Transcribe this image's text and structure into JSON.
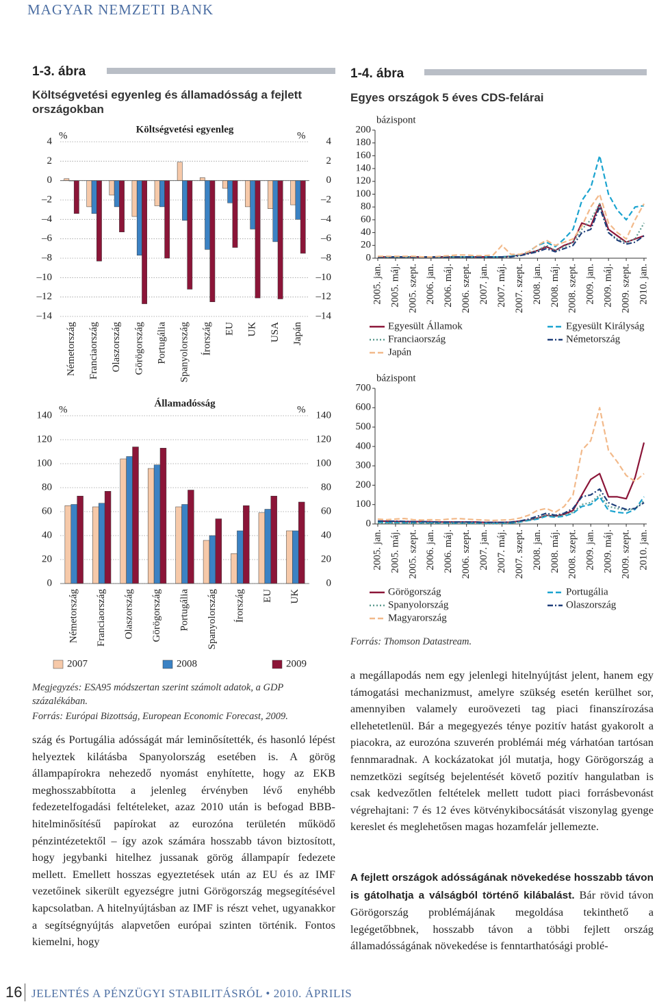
{
  "header": {
    "publisher": "MAGYAR NEMZETI BANK"
  },
  "figure_1_3": {
    "label": "1-3. ábra",
    "title": "Költségvetési egyenleg és államadósság a fejlett országokban",
    "note": "Megjegyzés: ESA95 módszertan szerint számolt adatok, a GDP százalékában.",
    "source": "Forrás: Európai Bizottság, European Economic Forecast, 2009."
  },
  "figure_1_4": {
    "label": "1-4. ábra",
    "title": "Egyes országok 5 éves CDS-felárai",
    "source": "Forrás: Thomson Datastream."
  },
  "chart_data": [
    {
      "type": "bar",
      "title": "Költségvetési egyenleg",
      "y_unit": "%",
      "categories": [
        "Németország",
        "Franciaország",
        "Olaszország",
        "Görögország",
        "Portugália",
        "Spanyolország",
        "Írország",
        "EU",
        "UK",
        "USA",
        "Japán"
      ],
      "series": [
        {
          "name": "2007",
          "color": "#f6c9a9",
          "values": [
            0.2,
            -2.7,
            -1.5,
            -3.7,
            -2.6,
            1.9,
            0.3,
            -0.8,
            -2.7,
            -2.9,
            -2.5
          ]
        },
        {
          "name": "2008",
          "color": "#3b82c4",
          "values": [
            0.0,
            -3.4,
            -2.7,
            -7.7,
            -2.7,
            -4.1,
            -7.1,
            -2.3,
            -5.0,
            -6.3,
            -4.0
          ]
        },
        {
          "name": "2009",
          "color": "#8b1538",
          "values": [
            -3.4,
            -8.3,
            -5.3,
            -12.7,
            -8.0,
            -11.2,
            -12.5,
            -6.9,
            -12.1,
            -12.2,
            -7.5
          ]
        }
      ],
      "ylim": [
        -14,
        4
      ],
      "yticks": [
        4,
        2,
        0,
        {
          "value": -2,
          "label": "–2"
        },
        {
          "value": -4,
          "label": "–4"
        },
        {
          "value": -6,
          "label": "–6"
        },
        {
          "value": -8,
          "label": "–8"
        },
        {
          "value": -10,
          "label": "–10"
        },
        {
          "value": -12,
          "label": "–12"
        },
        {
          "value": -14,
          "label": "–14"
        }
      ],
      "grid": true
    },
    {
      "type": "bar",
      "title": "Államadósság",
      "y_unit": "%",
      "categories": [
        "Németország",
        "Franciaország",
        "Olaszország",
        "Görögország",
        "Portugália",
        "Spanyolország",
        "Írország",
        "EU",
        "UK"
      ],
      "series": [
        {
          "color": "#f6c9a9",
          "values": [
            65,
            64,
            104,
            96,
            64,
            36,
            25,
            59,
            44
          ]
        },
        {
          "color": "#3b82c4",
          "values": [
            66,
            67,
            106,
            99,
            66,
            40,
            44,
            62,
            44
          ]
        },
        {
          "color": "#8b1538",
          "values": [
            73,
            77,
            114,
            113,
            78,
            54,
            65,
            73,
            68
          ]
        }
      ],
      "ylim": [
        0,
        140
      ],
      "yticks": [
        0,
        20,
        40,
        60,
        80,
        100,
        120,
        140
      ],
      "grid": true
    },
    {
      "type": "line",
      "y_label": "bázispont",
      "categories": [
        "2005. jan.",
        null,
        "2005. máj.",
        null,
        "2005. szept.",
        null,
        "2006. jan.",
        null,
        "2006. máj.",
        null,
        "2006. szept.",
        null,
        "2007. jan.",
        null,
        "2007. máj.",
        null,
        "2007. szept.",
        null,
        "2008. jan.",
        null,
        "2008. máj.",
        null,
        "2008. szept.",
        null,
        "2009. jan.",
        null,
        "2009. máj.",
        null,
        "2009. szept.",
        null,
        "2010. jan."
      ],
      "series": [
        {
          "name": "Egyesült Államok",
          "color": "#8b1538",
          "style": "solid",
          "values": [
            2,
            2,
            2,
            2,
            2,
            2,
            2,
            2,
            2,
            2,
            2,
            2,
            2,
            2,
            2,
            3,
            5,
            8,
            12,
            18,
            12,
            20,
            25,
            55,
            50,
            85,
            45,
            35,
            25,
            30,
            35
          ]
        },
        {
          "name": "Egyesült Királyság",
          "color": "#1aa3cf",
          "style": "dashed",
          "values": [
            2,
            2,
            2,
            2,
            2,
            2,
            2,
            2,
            2,
            2,
            2,
            2,
            2,
            2,
            2,
            3,
            5,
            10,
            20,
            25,
            18,
            30,
            45,
            90,
            110,
            160,
            100,
            75,
            60,
            80,
            82
          ]
        },
        {
          "name": "Franciaország",
          "color": "#5c9a8f",
          "style": "dotted",
          "values": [
            2,
            2,
            2,
            2,
            2,
            2,
            2,
            2,
            2,
            2,
            2,
            2,
            2,
            2,
            2,
            3,
            5,
            8,
            12,
            20,
            12,
            18,
            25,
            45,
            60,
            85,
            40,
            30,
            25,
            30,
            55
          ]
        },
        {
          "name": "Németország",
          "color": "#1f3f7a",
          "style": "dashdot",
          "values": [
            2,
            2,
            2,
            2,
            2,
            2,
            2,
            2,
            2,
            2,
            2,
            2,
            2,
            2,
            2,
            2,
            4,
            7,
            10,
            15,
            10,
            15,
            20,
            40,
            45,
            80,
            40,
            28,
            22,
            25,
            35
          ]
        },
        {
          "name": "Japán",
          "color": "#f2b98a",
          "style": "dashed",
          "values": [
            3,
            3,
            3,
            3,
            3,
            2,
            2,
            3,
            4,
            5,
            5,
            4,
            4,
            5,
            20,
            6,
            6,
            10,
            20,
            28,
            20,
            25,
            30,
            50,
            80,
            100,
            55,
            40,
            30,
            60,
            85
          ]
        }
      ],
      "ylim": [
        0,
        200
      ],
      "yticks": [
        0,
        20,
        40,
        60,
        80,
        100,
        120,
        140,
        160,
        180,
        200
      ],
      "grid": false
    },
    {
      "type": "line",
      "y_label": "bázispont",
      "categories": [
        "2005. jan.",
        null,
        "2005. máj.",
        null,
        "2005. szept.",
        null,
        "2006. jan.",
        null,
        "2006. máj.",
        null,
        "2006. szept.",
        null,
        "2007. jan.",
        null,
        "2007. máj.",
        null,
        "2007. szept.",
        null,
        "2008. jan.",
        null,
        "2008. máj.",
        null,
        "2008. szept.",
        null,
        "2009. jan.",
        null,
        "2009. máj.",
        null,
        "2009. szept.",
        null,
        "2010. jan."
      ],
      "series": [
        {
          "name": "Görögország",
          "color": "#8b1538",
          "style": "solid",
          "values": [
            15,
            14,
            13,
            12,
            12,
            12,
            11,
            10,
            10,
            10,
            10,
            10,
            8,
            8,
            8,
            9,
            15,
            20,
            30,
            45,
            40,
            50,
            70,
            150,
            230,
            260,
            140,
            140,
            130,
            240,
            420
          ]
        },
        {
          "name": "Portugália",
          "color": "#1aa3cf",
          "style": "dashed",
          "values": [
            8,
            7,
            7,
            6,
            6,
            6,
            6,
            5,
            5,
            5,
            5,
            5,
            4,
            4,
            4,
            5,
            10,
            18,
            25,
            40,
            35,
            40,
            55,
            90,
            100,
            140,
            70,
            60,
            55,
            75,
            140
          ]
        },
        {
          "name": "Spanyolország",
          "color": "#5c9a8f",
          "style": "dotted",
          "values": [
            5,
            5,
            5,
            4,
            4,
            4,
            4,
            4,
            4,
            4,
            4,
            4,
            3,
            3,
            3,
            5,
            10,
            20,
            30,
            45,
            40,
            45,
            60,
            100,
            110,
            150,
            90,
            80,
            70,
            80,
            120
          ]
        },
        {
          "name": "Olaszország",
          "color": "#1f3f7a",
          "style": "dashdot",
          "values": [
            15,
            14,
            14,
            13,
            12,
            12,
            11,
            10,
            10,
            10,
            10,
            10,
            8,
            8,
            8,
            10,
            15,
            25,
            40,
            55,
            45,
            55,
            80,
            140,
            150,
            180,
            110,
            90,
            75,
            80,
            110
          ]
        },
        {
          "name": "Magyarország",
          "color": "#f2b98a",
          "style": "dashed",
          "values": [
            25,
            22,
            25,
            28,
            22,
            20,
            22,
            20,
            25,
            28,
            25,
            22,
            20,
            18,
            20,
            22,
            30,
            45,
            70,
            80,
            60,
            90,
            150,
            380,
            430,
            600,
            380,
            320,
            250,
            220,
            260
          ]
        }
      ],
      "ylim": [
        0,
        700
      ],
      "yticks": [
        0,
        100,
        200,
        300,
        400,
        500,
        600,
        700
      ],
      "grid": false
    }
  ],
  "body": {
    "left": "szág és Portugália adósságát már leminősítették, és hasonló lépést helyeztek kilátásba Spanyolország esetében is. A görög állampapírokra nehezedő nyomást enyhítette, hogy az EKB meghosszabbította a jelenleg érvényben lévő enyhébb fedezetelfogadási feltételeket, azaz 2010 után is befogad BBB- hitelminősítésű papírokat az eurozóna területén működő pénzintézetektől – így azok számára hosszabb távon biztosított, hogy jegybanki hitelhez jussanak görög állampapír fedezete mellett. Emellett hosszas egyeztetések után az EU és az IMF vezetőinek sikerült egyezségre jutni Görögország megsegítésével kapcsolatban. A hitelnyújtásban az IMF is részt vehet, ugyanakkor a segítségnyújtás alapvetően európai szinten történik. Fontos kiemelni, hogy",
    "right_1": "a megállapodás nem egy jelenlegi hitelnyújtást jelent, hanem egy támogatási mechanizmust, amelyre szükség esetén kerülhet sor, amennyiben valamely euroövezeti tag piaci finanszírozása ellehetetlenül. Bár a megegyezés ténye pozitív hatást gyakorolt a piacokra, az eurozóna szuverén problémái még várhatóan tartósan fennmaradnak. A kockázatokat jól mutatja, hogy Görögország a nemzetközi segítség bejelentését követő pozitív hangulatban is csak kedvezőtlen feltételek mellett tudott piaci forrásbevonást végrehajtani: 7 és 12 éves kötvénykibocsátását viszonylag gyenge kereslet és meglehetősen magas hozamfelár jellemezte.",
    "right_2_bold": "A fejlett országok adósságának növekedése hosszabb távon is gátolhatja a válságból történő kilábalást.",
    "right_2": " Bár rövid távon Görögország problémájának megoldása tekinthető a legégetőbbnek, hosszabb távon a többi fejlett ország államadósságának növekedése is fenntarthatósági problé-"
  },
  "footer": {
    "page": "16",
    "title": "JELENTÉS A PÉNZÜGYI STABILITÁSRÓL • 2010. ÁPRILIS"
  }
}
